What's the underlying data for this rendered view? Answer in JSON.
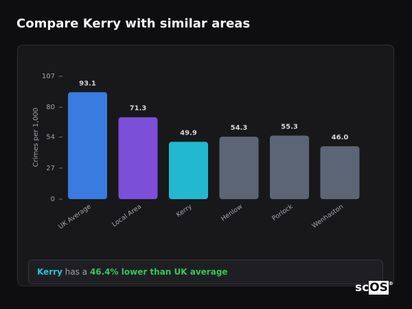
{
  "title": "Compare Kerry with similar areas",
  "chart_data": {
    "type": "bar",
    "y_label": "Crimes per 1,000",
    "categories": [
      "UK Average",
      "Local Area",
      "Kerry",
      "Henlow",
      "Porlock",
      "Wenhaston"
    ],
    "values": [
      93.1,
      71.3,
      49.9,
      54.3,
      55.3,
      46.0
    ],
    "value_labels": [
      "93.1",
      "71.3",
      "49.9",
      "54.3",
      "55.3",
      "46.0"
    ],
    "colors": [
      "#3a7be0",
      "#7b4fd8",
      "#22b8cf",
      "#5b6576",
      "#5b6576",
      "#5b6576"
    ],
    "ylim": [
      0,
      107
    ],
    "yticks": [
      0,
      27,
      54,
      80,
      107
    ],
    "grid": false
  },
  "footer": {
    "area": "Kerry",
    "connector": "has a",
    "comparison": "46.4% lower than UK average"
  },
  "logo": {
    "prefix": "sc",
    "boxed": "OS",
    "mark": "®"
  }
}
